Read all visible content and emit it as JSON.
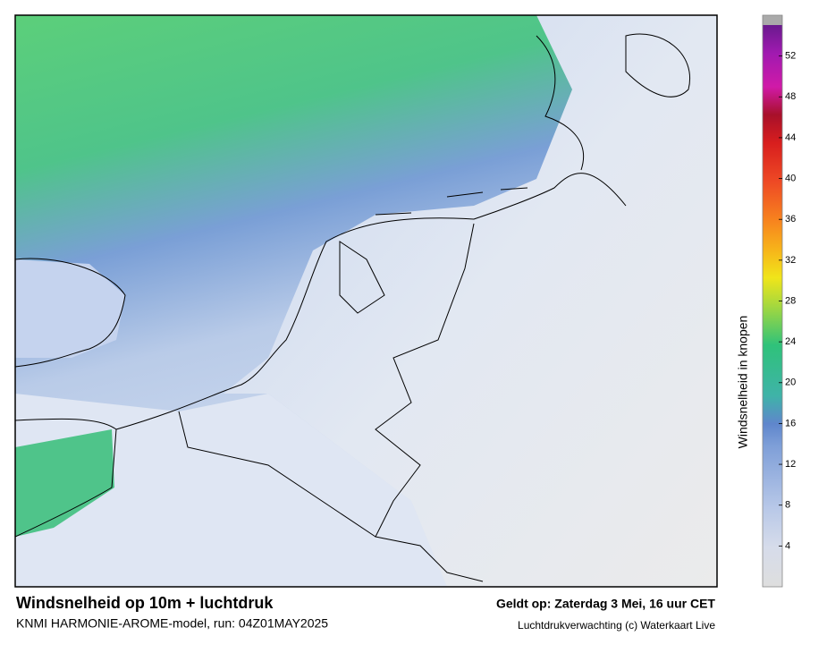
{
  "header": {
    "title": "Windsnelheid op 10m + luchtdruk",
    "subtitle": "KNMI HARMONIE-AROME-model, run: 04Z01MAY2025",
    "valid": "Geldt op: Zaterdag 3 Mei, 16 uur CET",
    "credit": "Luchtdrukverwachting (c) Waterkaart Live"
  },
  "colorbar": {
    "label": "Windsnelheid in knopen",
    "lim": [
      0,
      56
    ],
    "ticks": [
      4,
      8,
      12,
      16,
      20,
      24,
      28,
      32,
      36,
      40,
      44,
      48,
      52
    ]
  }
}
